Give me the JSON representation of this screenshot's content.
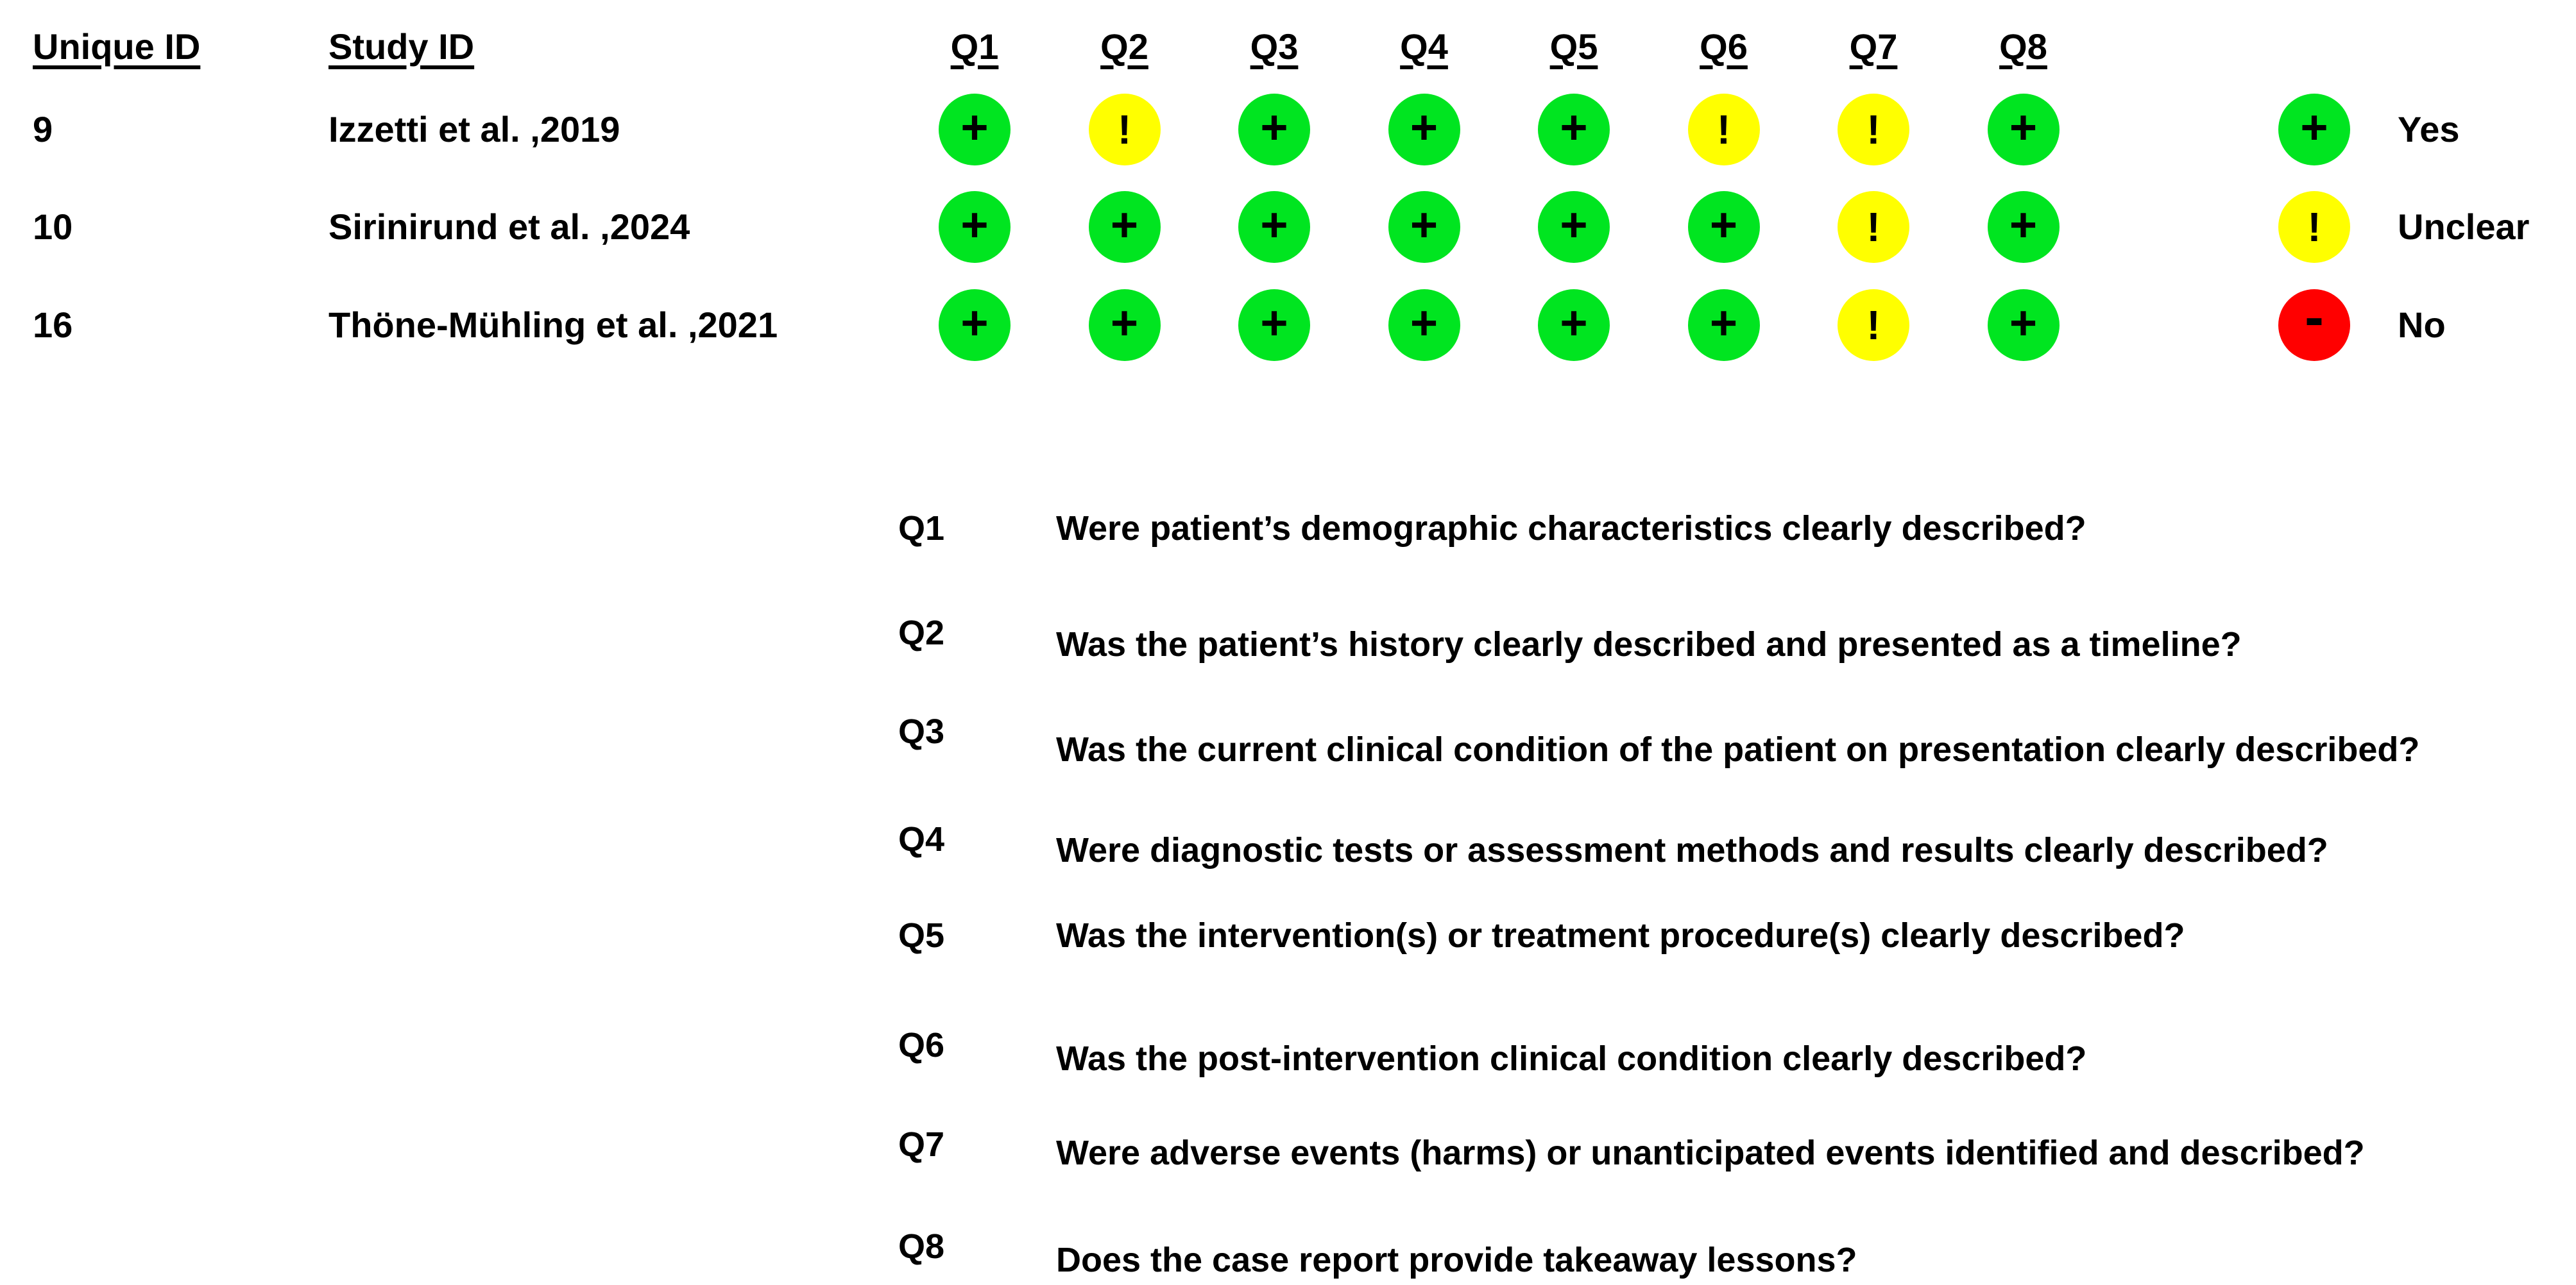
{
  "table": {
    "headers": {
      "unique_id": "Unique ID",
      "study_id": "Study ID",
      "questions": [
        "Q1",
        "Q2",
        "Q3",
        "Q4",
        "Q5",
        "Q6",
        "Q7",
        "Q8"
      ]
    },
    "studies": [
      {
        "unique_id": "9",
        "study_id": "Izzetti et al. ,2019",
        "ratings": [
          "yes",
          "unclear",
          "yes",
          "yes",
          "yes",
          "unclear",
          "unclear",
          "yes"
        ]
      },
      {
        "unique_id": "10",
        "study_id": "Sirinirund et al. ,2024",
        "ratings": [
          "yes",
          "yes",
          "yes",
          "yes",
          "yes",
          "yes",
          "unclear",
          "yes"
        ]
      },
      {
        "unique_id": "16",
        "study_id": "Thöne-Mühling et al. ,2021",
        "ratings": [
          "yes",
          "yes",
          "yes",
          "yes",
          "yes",
          "yes",
          "unclear",
          "yes"
        ]
      }
    ]
  },
  "legend": {
    "items": [
      {
        "rating": "yes",
        "symbol": "+",
        "label": "Yes",
        "color": "#00e520"
      },
      {
        "rating": "unclear",
        "symbol": "!",
        "label": "Unclear",
        "color": "#ffff00"
      },
      {
        "rating": "no",
        "symbol": "-",
        "label": "No",
        "color": "#ff0000"
      }
    ]
  },
  "symbols": {
    "yes": "+",
    "unclear": "!",
    "no": "-"
  },
  "colors": {
    "yes": "#00e520",
    "unclear": "#ffff00",
    "no": "#ff0000"
  },
  "questions": [
    {
      "id": "Q1",
      "text": "Were patient’s demographic characteristics clearly described?"
    },
    {
      "id": "Q2",
      "text": "Was the patient’s history clearly described and presented as a timeline?"
    },
    {
      "id": "Q3",
      "text": "Was the current clinical condition of the patient on presentation clearly described?"
    },
    {
      "id": "Q4",
      "text": "Were diagnostic tests or assessment methods and results clearly described?"
    },
    {
      "id": "Q5",
      "text": "Was the intervention(s) or treatment procedure(s) clearly described?"
    },
    {
      "id": "Q6",
      "text": "Was the post-intervention clinical condition clearly described?"
    },
    {
      "id": "Q7",
      "text": "Were adverse events (harms) or unanticipated events identified and described?"
    },
    {
      "id": "Q8",
      "text": "Does the case report provide takeaway lessons?"
    }
  ],
  "chart_data": {
    "type": "heatmap",
    "title": "",
    "row_ids": [
      "9",
      "10",
      "16"
    ],
    "row_labels": [
      "Izzetti et al. ,2019",
      "Sirinirund et al. ,2024",
      "Thöne-Mühling et al. ,2021"
    ],
    "columns": [
      "Q1",
      "Q2",
      "Q3",
      "Q4",
      "Q5",
      "Q6",
      "Q7",
      "Q8"
    ],
    "values": [
      [
        "Yes",
        "Unclear",
        "Yes",
        "Yes",
        "Yes",
        "Unclear",
        "Unclear",
        "Yes"
      ],
      [
        "Yes",
        "Yes",
        "Yes",
        "Yes",
        "Yes",
        "Yes",
        "Unclear",
        "Yes"
      ],
      [
        "Yes",
        "Yes",
        "Yes",
        "Yes",
        "Yes",
        "Yes",
        "Unclear",
        "Yes"
      ]
    ],
    "legend_position": "right",
    "legend": [
      {
        "symbol": "+",
        "color": "#00e520",
        "label": "Yes"
      },
      {
        "symbol": "!",
        "color": "#ffff00",
        "label": "Unclear"
      },
      {
        "symbol": "-",
        "color": "#ff0000",
        "label": "No"
      }
    ],
    "question_key": {
      "Q1": "Were patient’s demographic characteristics clearly described?",
      "Q2": "Was the patient’s history clearly described and presented as a timeline?",
      "Q3": "Was the current clinical condition of the patient on presentation clearly described?",
      "Q4": "Were diagnostic tests or assessment methods and results clearly described?",
      "Q5": "Was the intervention(s) or treatment procedure(s) clearly described?",
      "Q6": "Was the post-intervention clinical condition clearly described?",
      "Q7": "Were adverse events (harms) or unanticipated events identified and described?",
      "Q8": "Does the case report provide takeaway lessons?"
    }
  }
}
